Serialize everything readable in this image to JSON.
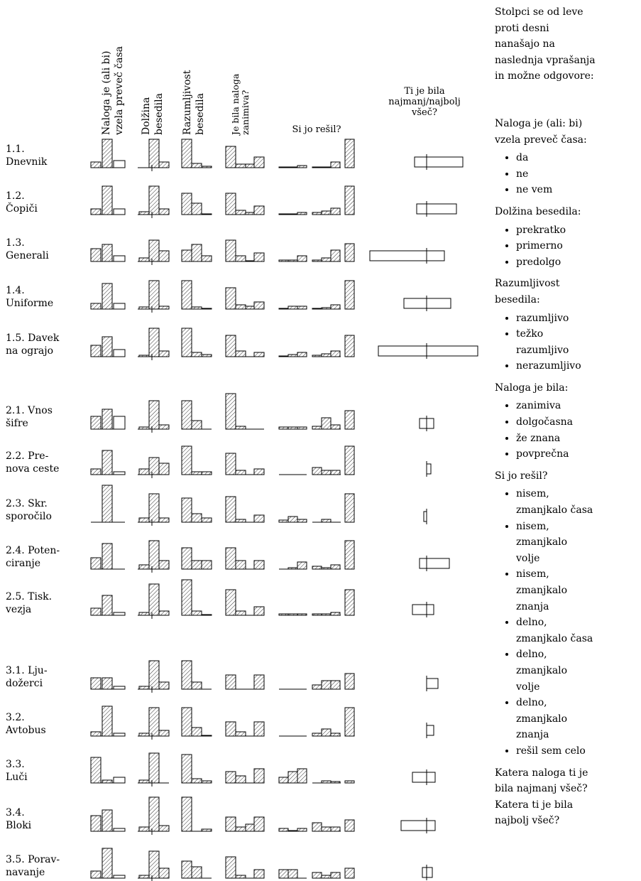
{
  "columns": [
    {
      "lines": [
        "Naloga je (ali bi)",
        "vzela preveč časa"
      ]
    },
    {
      "lines": [
        "Dolžina",
        "besedila"
      ]
    },
    {
      "lines": [
        "Razumljivost",
        "besedila"
      ]
    },
    {
      "lines": [
        "Je bila naloga",
        "zanimiva?"
      ]
    },
    {
      "lines": [
        "Si jo rešil?"
      ]
    },
    {
      "lines": [
        "Ti je bila",
        "najmanj/najbolj",
        "všeč?"
      ]
    }
  ],
  "rows": [
    {
      "label": [
        "1.1.",
        "Dnevnik"
      ],
      "bars": [
        [
          8,
          40,
          10
        ],
        [
          0,
          40,
          8
        ],
        [
          40,
          6,
          2
        ],
        [
          30,
          5,
          5,
          15
        ],
        [
          1,
          1,
          3,
          1,
          1,
          8,
          40
        ]
      ],
      "box": [
        -17,
        51
      ]
    },
    {
      "label": [
        "1.2.",
        "Čopiči"
      ],
      "bars": [
        [
          8,
          40,
          8
        ],
        [
          4,
          40,
          8
        ],
        [
          30,
          16,
          1
        ],
        [
          30,
          6,
          3,
          12
        ],
        [
          1,
          1,
          3,
          3,
          5,
          9,
          40
        ]
      ],
      "box": [
        -14,
        42
      ]
    },
    {
      "label": [
        "1.3.",
        "Generali"
      ],
      "bars": [
        [
          18,
          24,
          8
        ],
        [
          5,
          30,
          15
        ],
        [
          16,
          24,
          8
        ],
        [
          30,
          8,
          1,
          12
        ],
        [
          2,
          2,
          8,
          2,
          5,
          16,
          25
        ]
      ],
      "box": [
        -80,
        25
      ]
    },
    {
      "label": [
        "1.4.",
        "Uniforme"
      ],
      "bars": [
        [
          8,
          36,
          8
        ],
        [
          3,
          40,
          4
        ],
        [
          40,
          3,
          1
        ],
        [
          30,
          6,
          4,
          10
        ],
        [
          1,
          4,
          4,
          1,
          2,
          6,
          40
        ]
      ],
      "box": [
        -32,
        34
      ]
    },
    {
      "label": [
        "1.5. Davek",
        "na ograjo"
      ],
      "bars": [
        [
          16,
          28,
          10
        ],
        [
          2,
          40,
          8
        ],
        [
          40,
          6,
          3
        ],
        [
          30,
          8,
          0,
          6
        ],
        [
          1,
          3,
          6,
          2,
          4,
          8,
          30
        ]
      ],
      "box": [
        -68,
        72
      ]
    },
    {
      "label": [
        "2.1. Vnos",
        "šifre"
      ],
      "bars": [
        [
          18,
          28,
          18
        ],
        [
          3,
          40,
          6
        ],
        [
          40,
          12,
          0
        ],
        [
          50,
          4,
          0,
          0
        ],
        [
          3,
          3,
          3,
          4,
          16,
          6,
          26
        ]
      ],
      "box": [
        -10,
        10
      ]
    },
    {
      "label": [
        "2.2. Pre-",
        "nova ceste"
      ],
      "bars": [
        [
          8,
          34,
          4
        ],
        [
          8,
          24,
          16
        ],
        [
          40,
          4,
          4
        ],
        [
          30,
          6,
          0,
          8
        ],
        [
          0,
          0,
          0,
          10,
          6,
          6,
          40
        ]
      ],
      "box": [
        0,
        6
      ]
    },
    {
      "label": [
        "2.3. Skr.",
        "sporočilo"
      ],
      "bars": [
        [
          0,
          52,
          0
        ],
        [
          6,
          40,
          6
        ],
        [
          34,
          12,
          6
        ],
        [
          36,
          4,
          0,
          10
        ],
        [
          3,
          8,
          4,
          0,
          4,
          0,
          40
        ]
      ],
      "box": [
        -4,
        0
      ]
    },
    {
      "label": [
        "2.4. Poten-",
        "ciranje"
      ],
      "bars": [
        [
          16,
          36,
          0
        ],
        [
          6,
          40,
          12
        ],
        [
          30,
          12,
          12
        ],
        [
          30,
          12,
          0,
          12
        ],
        [
          0,
          2,
          10,
          4,
          2,
          6,
          40
        ]
      ],
      "box": [
        -10,
        32
      ]
    },
    {
      "label": [
        "2.5. Tisk.",
        "vezja"
      ],
      "bars": [
        [
          10,
          28,
          4
        ],
        [
          4,
          44,
          6
        ],
        [
          50,
          6,
          1
        ],
        [
          36,
          6,
          0,
          12
        ],
        [
          2,
          2,
          2,
          2,
          2,
          4,
          36
        ]
      ],
      "box": [
        -20,
        10
      ]
    },
    {
      "label": [
        "3.1. Lju-",
        "dožerci"
      ],
      "bars": [
        [
          16,
          16,
          4
        ],
        [
          4,
          40,
          10
        ],
        [
          40,
          10,
          0
        ],
        [
          20,
          0,
          0,
          20
        ],
        [
          0,
          0,
          0,
          6,
          12,
          12,
          22
        ]
      ],
      "box": [
        0,
        16
      ]
    },
    {
      "label": [
        "3.2.",
        "Avtobus"
      ],
      "bars": [
        [
          6,
          42,
          4
        ],
        [
          4,
          40,
          8
        ],
        [
          40,
          12,
          1
        ],
        [
          20,
          6,
          0,
          20
        ],
        [
          0,
          0,
          0,
          4,
          10,
          4,
          40
        ]
      ],
      "box": [
        0,
        10
      ]
    },
    {
      "label": [
        "3.3.",
        "Luči"
      ],
      "bars": [
        [
          36,
          4,
          8
        ],
        [
          4,
          42,
          0
        ],
        [
          40,
          6,
          3
        ],
        [
          16,
          10,
          0,
          20
        ],
        [
          8,
          16,
          20,
          0,
          3,
          2,
          3
        ]
      ],
      "box": [
        -20,
        12
      ]
    },
    {
      "label": [
        "3.4.",
        "Bloki"
      ],
      "bars": [
        [
          22,
          30,
          4
        ],
        [
          6,
          48,
          8
        ],
        [
          48,
          0,
          3
        ],
        [
          20,
          6,
          10,
          20
        ],
        [
          4,
          1,
          4,
          12,
          6,
          6,
          16
        ]
      ],
      "box": [
        -36,
        12
      ]
    },
    {
      "label": [
        "3.5. Porav-",
        "navanje"
      ],
      "bars": [
        [
          10,
          42,
          4
        ],
        [
          4,
          38,
          14
        ],
        [
          24,
          16,
          0
        ],
        [
          30,
          4,
          0,
          12
        ],
        [
          12,
          12,
          0,
          8,
          4,
          8,
          14
        ]
      ],
      "box": [
        -6,
        8
      ]
    }
  ],
  "legend": {
    "intro": [
      "Stolpci se od leve",
      "proti desni",
      "nanašajo na",
      "naslednja vprašanja",
      "in možne odgovore:"
    ],
    "sections": [
      {
        "heading": [
          "Naloga je (ali: bi)",
          "vzela preveč časa:"
        ],
        "items": [
          [
            "da"
          ],
          [
            "ne"
          ],
          [
            "ne vem"
          ]
        ]
      },
      {
        "heading": [
          "Dolžina besedila:"
        ],
        "items": [
          [
            "prekratko"
          ],
          [
            "primerno"
          ],
          [
            "predolgo"
          ]
        ]
      },
      {
        "heading": [
          "Razumljivost",
          "besedila:"
        ],
        "items": [
          [
            "razumljivo"
          ],
          [
            "težko",
            "razumljivo"
          ],
          [
            "nerazumljivo"
          ]
        ]
      },
      {
        "heading": [
          "Naloga je bila:"
        ],
        "items": [
          [
            "zanimiva"
          ],
          [
            "dolgočasna"
          ],
          [
            "že znana"
          ],
          [
            "povprečna"
          ]
        ]
      },
      {
        "heading": [
          "Si jo rešil?"
        ],
        "items": [
          [
            "nisem,",
            "zmanjkalo časa"
          ],
          [
            "nisem,",
            "zmanjkalo",
            "volje"
          ],
          [
            "nisem,",
            "zmanjkalo",
            "znanja"
          ],
          [
            "delno,",
            "zmanjkalo časa"
          ],
          [
            "delno,",
            "zmanjkalo",
            "volje"
          ],
          [
            "delno,",
            "zmanjkalo",
            "znanja"
          ],
          [
            "rešil sem celo"
          ]
        ]
      },
      {
        "heading": [
          "Katera naloga ti je",
          "bila najmanj všeč?",
          "Katera ti je bila",
          "najbolj všeč?"
        ],
        "items": []
      }
    ]
  }
}
